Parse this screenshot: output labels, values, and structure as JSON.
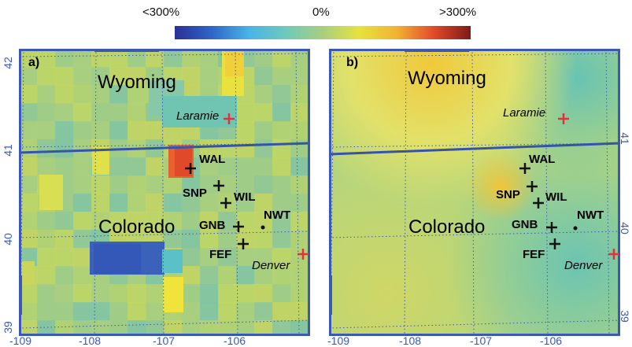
{
  "colorbar": {
    "min_label": "<300%",
    "mid_label": "0%",
    "max_label": ">300%",
    "stops": [
      "#2b2f96",
      "#2f66c8",
      "#49b3e6",
      "#6fc9bb",
      "#a8cf7f",
      "#e6e33d",
      "#f2b233",
      "#e24a2a",
      "#7d1a18"
    ]
  },
  "axes": {
    "lat_ticks": [
      "42",
      "41",
      "40",
      "39"
    ],
    "lon_ticks": [
      "-109",
      "-108",
      "-107",
      "-106"
    ],
    "right_lat_ticks": [
      "41",
      "40",
      "39"
    ]
  },
  "panels": [
    {
      "panel_label": "a)",
      "state_north": "Wyoming",
      "state_south": "Colorado",
      "cities": [
        {
          "name": "Laramie"
        },
        {
          "name": "Denver"
        }
      ],
      "sites": [
        {
          "name": "WAL",
          "marker": "plus"
        },
        {
          "name": "SNP",
          "marker": "plus"
        },
        {
          "name": "WIL",
          "marker": "plus"
        },
        {
          "name": "GNB",
          "marker": "plus"
        },
        {
          "name": "NWT",
          "marker": "dot"
        },
        {
          "name": "FEF",
          "marker": "plus"
        }
      ]
    },
    {
      "panel_label": "b)",
      "state_north": "Wyoming",
      "state_south": "Colorado",
      "cities": [
        {
          "name": "Laramie"
        },
        {
          "name": "Denver"
        }
      ],
      "sites": [
        {
          "name": "WAL",
          "marker": "plus"
        },
        {
          "name": "SNP",
          "marker": "plus"
        },
        {
          "name": "WIL",
          "marker": "plus"
        },
        {
          "name": "GNB",
          "marker": "plus"
        },
        {
          "name": "NWT",
          "marker": "dot"
        },
        {
          "name": "FEF",
          "marker": "plus"
        }
      ]
    }
  ],
  "colors": {
    "frame": "#3b58b6",
    "border_line": "#3553a8",
    "city_marker": "#e0323a"
  }
}
